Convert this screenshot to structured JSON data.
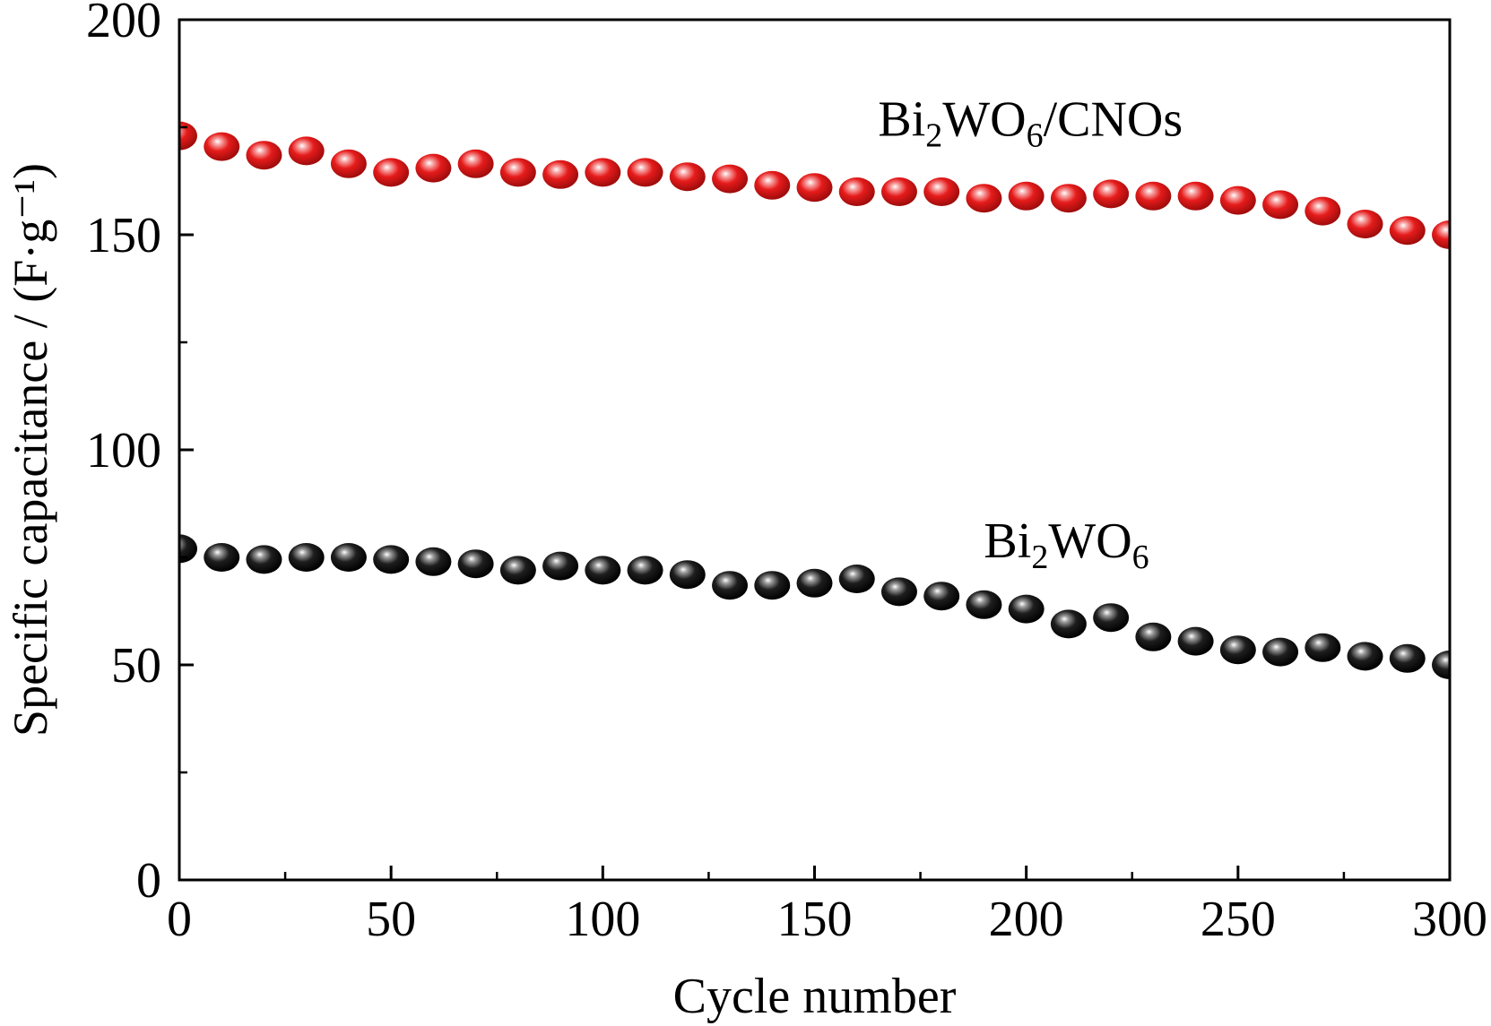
{
  "chart_data": {
    "type": "scatter",
    "title": "",
    "xlabel": "Cycle number",
    "ylabel": "Specific capacitance / (F·g⁻¹)",
    "xlim": [
      0,
      300
    ],
    "ylim": [
      0,
      200
    ],
    "x_ticks": [
      0,
      50,
      100,
      150,
      200,
      250,
      300
    ],
    "y_ticks": [
      0,
      50,
      100,
      150,
      200
    ],
    "y_minor_ticks": [
      25,
      75,
      125,
      175
    ],
    "x_minor_ticks": [
      25,
      75,
      125,
      175,
      225,
      275
    ],
    "grid": false,
    "x": [
      0,
      10,
      20,
      30,
      40,
      50,
      60,
      70,
      80,
      90,
      100,
      110,
      120,
      130,
      140,
      150,
      160,
      170,
      180,
      190,
      200,
      210,
      220,
      230,
      240,
      250,
      260,
      270,
      280,
      290,
      300
    ],
    "series": [
      {
        "name": "Bi2WO6/CNOs",
        "color": "#e0161b",
        "values": [
          173,
          170.5,
          168.5,
          169.5,
          166.5,
          164.5,
          165.5,
          166.5,
          164.5,
          164,
          164.5,
          164.5,
          163.5,
          163,
          161.5,
          161,
          160,
          160,
          160,
          158.5,
          159,
          158.5,
          159.5,
          159,
          159,
          158,
          157,
          155.5,
          152.5,
          151,
          150
        ]
      },
      {
        "name": "Bi2WO6",
        "color": "#111111",
        "values": [
          77,
          75,
          74.5,
          75,
          75,
          74.5,
          74,
          73.5,
          72,
          73,
          72,
          72,
          71,
          68.5,
          68.5,
          69,
          70,
          67,
          66,
          64,
          63,
          59.5,
          61,
          56.5,
          55.5,
          53.5,
          53,
          54,
          52,
          51.5,
          50
        ]
      }
    ],
    "annotations": [
      {
        "main": "Bi",
        "sub1": "2",
        "mid": "WO",
        "sub2": "6",
        "tail": "/CNOs",
        "anchor_x": 165,
        "anchor_y": 173
      },
      {
        "main": "Bi",
        "sub1": "2",
        "mid": "WO",
        "sub2": "6",
        "tail": "",
        "anchor_x": 190,
        "anchor_y": 75
      }
    ]
  }
}
